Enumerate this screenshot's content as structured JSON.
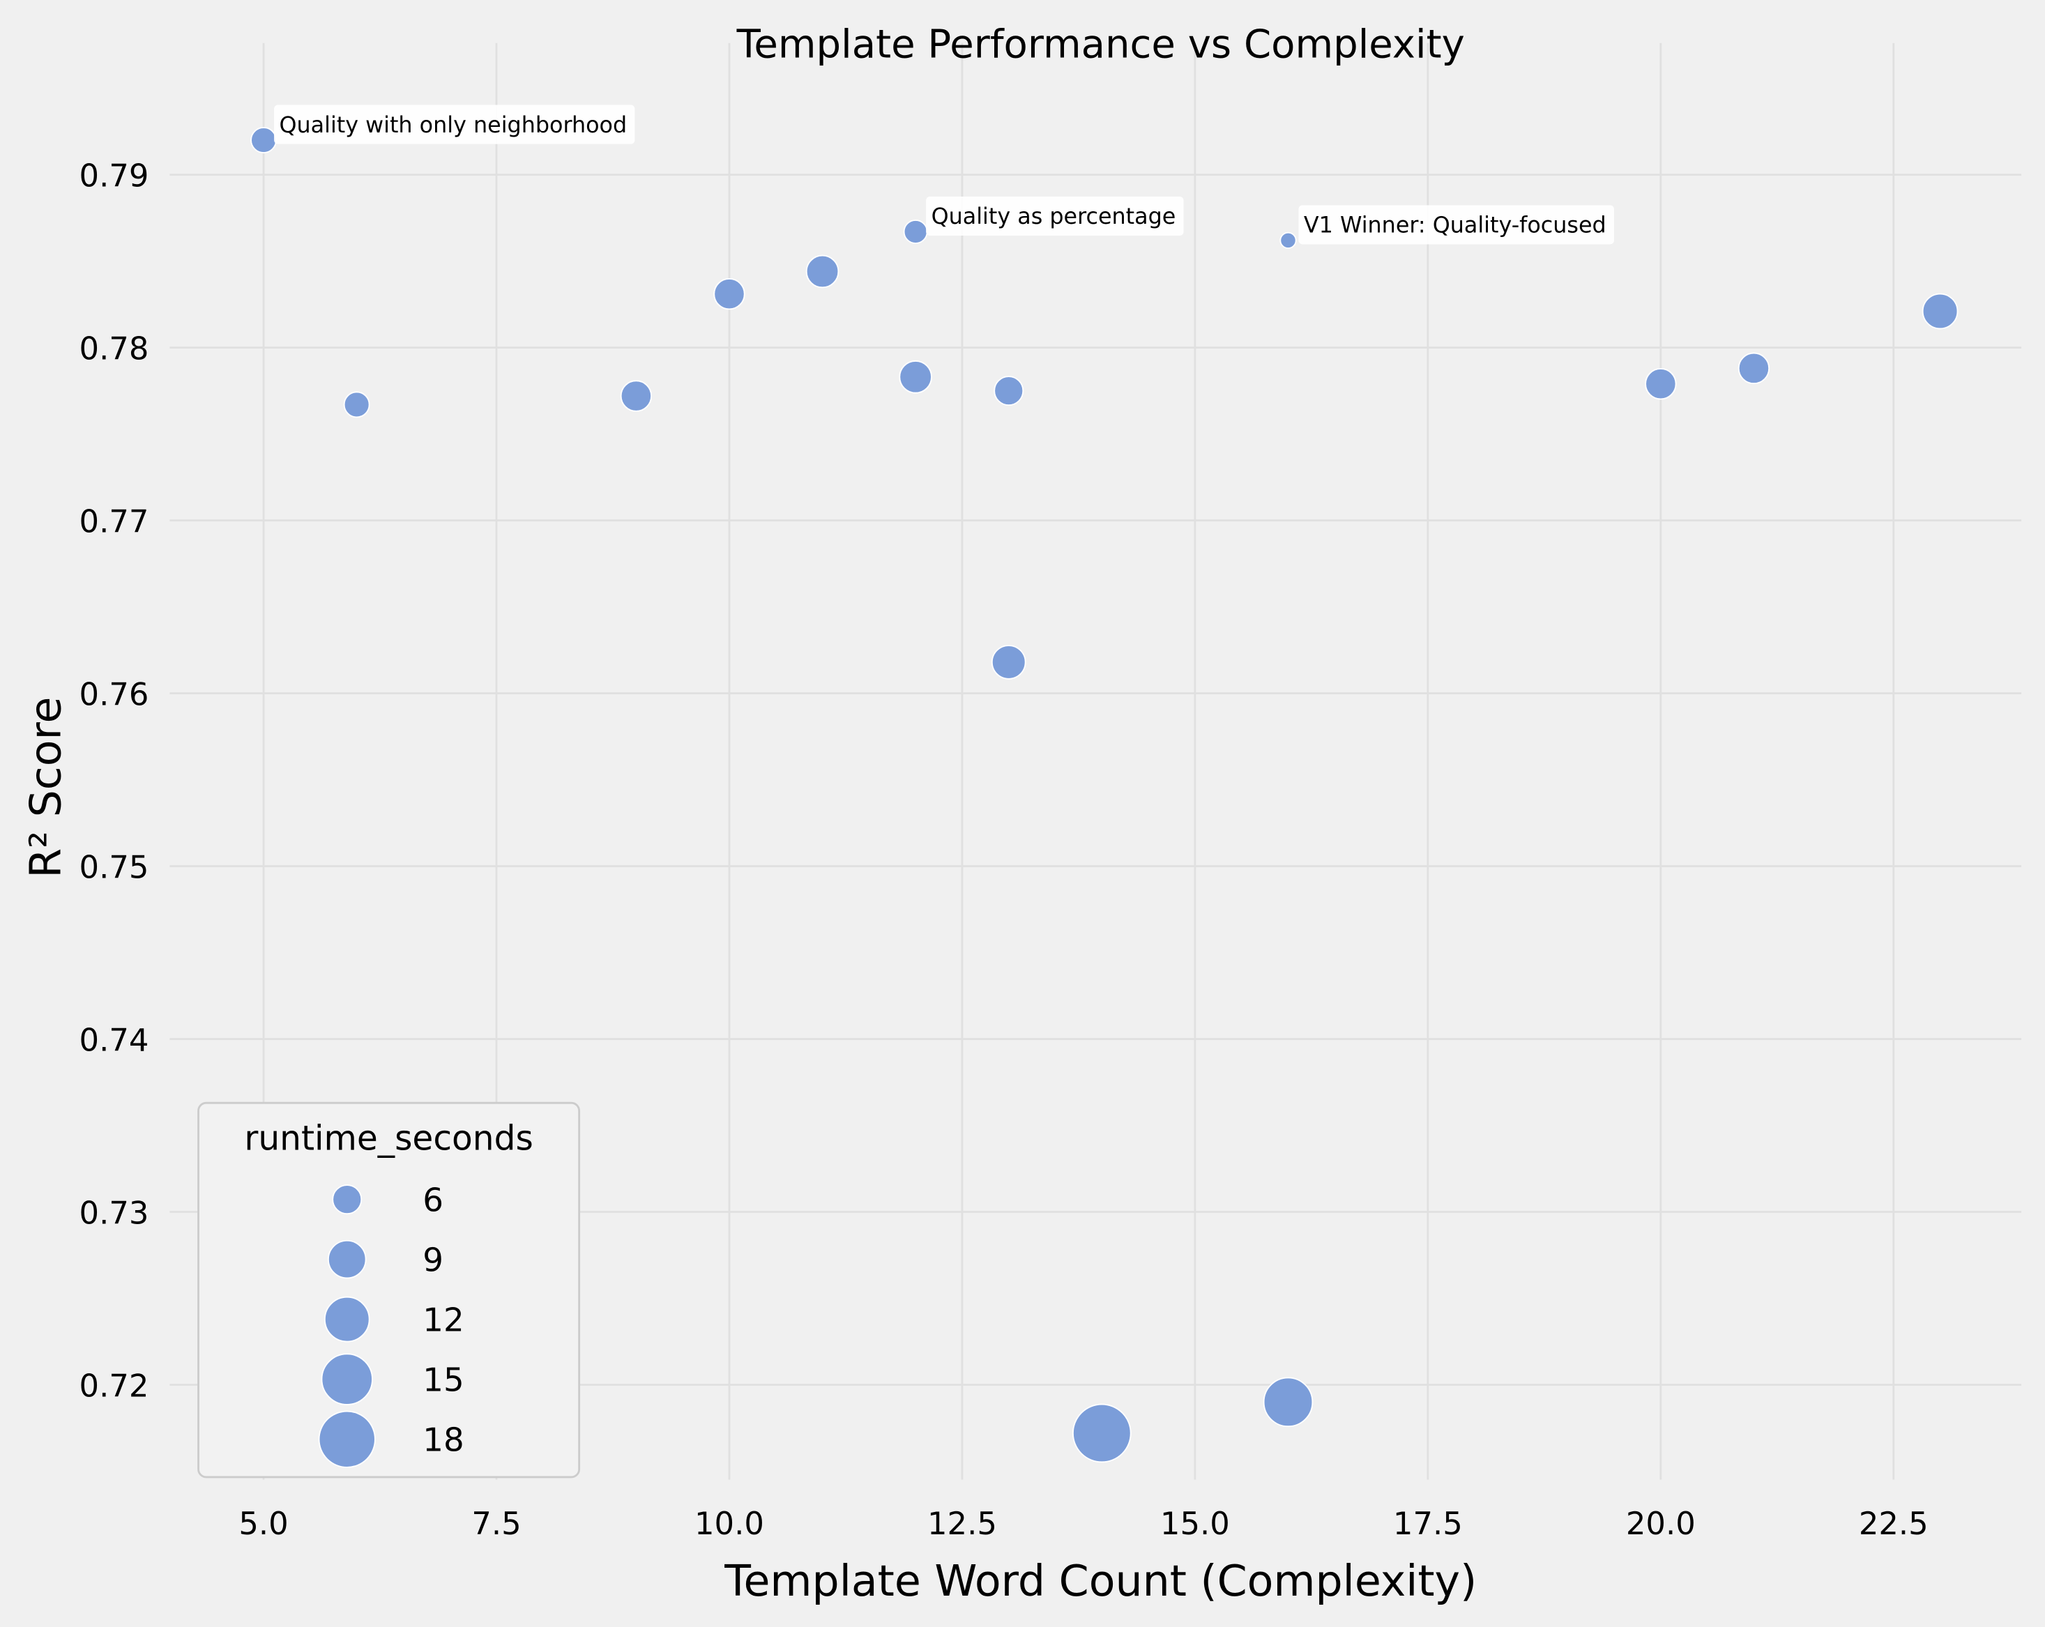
{
  "chart_data": {
    "type": "scatter",
    "title": "Template Performance vs Complexity",
    "xlabel": "Template Word Count (Complexity)",
    "ylabel": "R² Score",
    "xlim": [
      4.2,
      23.8
    ],
    "ylim": [
      0.7145,
      0.7955
    ],
    "xticks": [
      5.0,
      7.5,
      10.0,
      12.5,
      15.0,
      17.5,
      20.0,
      22.5
    ],
    "xtick_labels": [
      "5.0",
      "7.5",
      "10.0",
      "12.5",
      "15.0",
      "17.5",
      "20.0",
      "22.5"
    ],
    "yticks": [
      0.72,
      0.73,
      0.74,
      0.75,
      0.76,
      0.77,
      0.78,
      0.79
    ],
    "ytick_labels": [
      "0.72",
      "0.73",
      "0.74",
      "0.75",
      "0.76",
      "0.77",
      "0.78",
      "0.79"
    ],
    "grid": true,
    "marker_color": "#7b9dd9",
    "background_color": "#f0f0f0",
    "size_variable": "runtime_seconds",
    "legend": {
      "title": "runtime_seconds",
      "placement": "lower-left",
      "sizes": [
        6,
        9,
        12,
        15,
        18
      ],
      "labels": [
        "6",
        "9",
        "12",
        "15",
        "18"
      ]
    },
    "points": [
      {
        "x": 5,
        "y": 0.792,
        "runtime_seconds": 5,
        "annotation": "Quality with only neighborhood"
      },
      {
        "x": 6,
        "y": 0.7767,
        "runtime_seconds": 5
      },
      {
        "x": 9,
        "y": 0.7772,
        "runtime_seconds": 6.5
      },
      {
        "x": 10,
        "y": 0.7831,
        "runtime_seconds": 6.5
      },
      {
        "x": 11,
        "y": 0.7844,
        "runtime_seconds": 7
      },
      {
        "x": 12,
        "y": 0.7867,
        "runtime_seconds": 4.5,
        "annotation": "Quality as percentage"
      },
      {
        "x": 12,
        "y": 0.7783,
        "runtime_seconds": 7
      },
      {
        "x": 13,
        "y": 0.7775,
        "runtime_seconds": 6
      },
      {
        "x": 13,
        "y": 0.7618,
        "runtime_seconds": 7.5
      },
      {
        "x": 14,
        "y": 0.7172,
        "runtime_seconds": 19
      },
      {
        "x": 16,
        "y": 0.7862,
        "runtime_seconds": 3,
        "annotation": "V1 Winner: Quality-focused"
      },
      {
        "x": 16,
        "y": 0.719,
        "runtime_seconds": 14
      },
      {
        "x": 20,
        "y": 0.7779,
        "runtime_seconds": 6.5
      },
      {
        "x": 21,
        "y": 0.7788,
        "runtime_seconds": 6.5
      },
      {
        "x": 23,
        "y": 0.7821,
        "runtime_seconds": 8
      }
    ]
  }
}
